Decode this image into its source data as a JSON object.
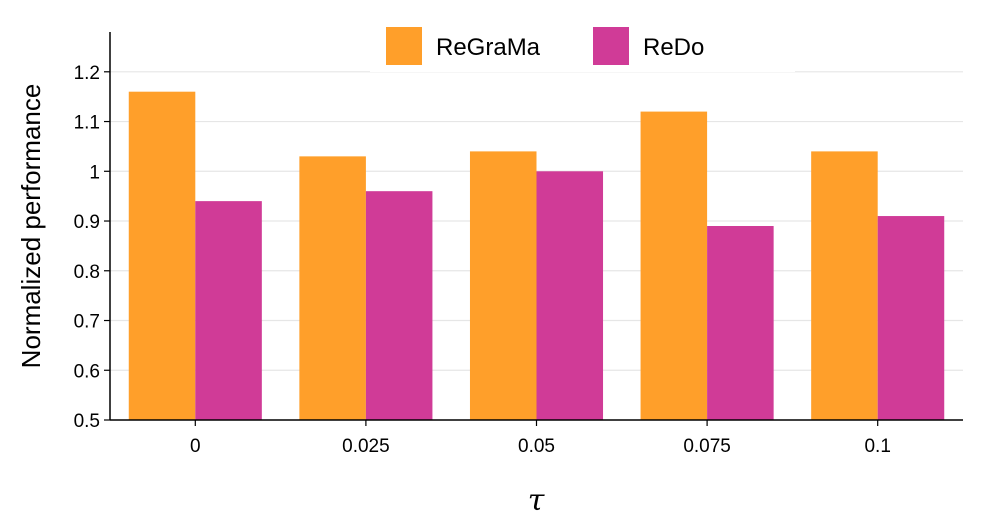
{
  "chart_data": {
    "type": "bar",
    "categories": [
      "0",
      "0.025",
      "0.05",
      "0.075",
      "0.1"
    ],
    "series": [
      {
        "name": "ReGraMa",
        "color": "#FF9F2A",
        "values": [
          1.16,
          1.03,
          1.04,
          1.12,
          1.04
        ]
      },
      {
        "name": "ReDo",
        "color": "#D03B97",
        "values": [
          0.94,
          0.96,
          1.0,
          0.89,
          0.91
        ]
      }
    ],
    "xlabel": "τ",
    "ylabel": "Normalized performance",
    "ylim": [
      0.5,
      1.28
    ],
    "yticks": [
      0.5,
      0.6,
      0.7,
      0.8,
      0.9,
      1,
      1.1,
      1.2
    ],
    "ytick_labels": [
      "0.5",
      "0.6",
      "0.7",
      "0.8",
      "0.9",
      "1",
      "1.1",
      "1.2"
    ],
    "grid": true,
    "legend_position": "top-center"
  }
}
